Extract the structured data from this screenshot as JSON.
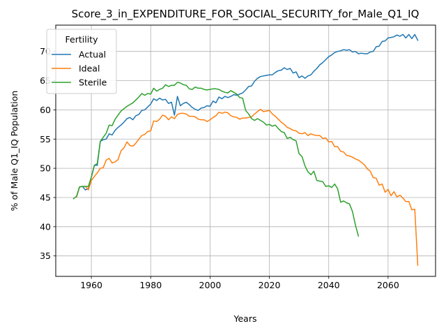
{
  "chart_data": {
    "type": "line",
    "title": "Score_3_in_EXPENDITURE_FOR_SOCIAL_SECURITY_for_Male_Q1_IQ",
    "xlabel": "Years",
    "ylabel": "% of Male Q1_IQ Population",
    "xlim": [
      1948,
      2076
    ],
    "ylim": [
      31.5,
      74.5
    ],
    "xticks": [
      1960,
      1980,
      2000,
      2020,
      2040,
      2060
    ],
    "yticks": [
      35,
      40,
      45,
      50,
      55,
      60,
      65,
      70
    ],
    "grid": true,
    "legend": {
      "title": "Fertility",
      "position": "top-left"
    },
    "series": [
      {
        "name": "Actual",
        "color": "#1f77b4",
        "x": [
          1955,
          1956,
          1957,
          1958,
          1959,
          1960,
          1961,
          1962,
          1963,
          1964,
          1965,
          1966,
          1967,
          1968,
          1969,
          1970,
          1971,
          1972,
          1973,
          1974,
          1975,
          1976,
          1977,
          1978,
          1979,
          1980,
          1981,
          1982,
          1983,
          1984,
          1985,
          1986,
          1987,
          1988,
          1989,
          1990,
          1991,
          1992,
          1993,
          1994,
          1995,
          1996,
          1997,
          1998,
          1999,
          2000,
          2001,
          2002,
          2003,
          2004,
          2005,
          2006,
          2007,
          2008,
          2009,
          2010,
          2011,
          2012,
          2013,
          2014,
          2015,
          2016,
          2017,
          2018,
          2019,
          2020,
          2021,
          2022,
          2023,
          2024,
          2025,
          2026,
          2027,
          2028,
          2029,
          2030,
          2031,
          2032,
          2033,
          2034,
          2035,
          2036,
          2037,
          2038,
          2039,
          2040,
          2041,
          2042,
          2043,
          2044,
          2045,
          2046,
          2047,
          2048,
          2049,
          2050,
          2051,
          2052,
          2053,
          2054,
          2055,
          2056,
          2057,
          2058,
          2059,
          2060,
          2061,
          2062,
          2063,
          2064,
          2065,
          2066,
          2067,
          2068,
          2069,
          2070
        ],
        "y": [
          45.1,
          46.8,
          46.9,
          46.3,
          46.5,
          48.5,
          50.5,
          50.5,
          54.6,
          54.9,
          55.0,
          55.9,
          55.7,
          56.5,
          57.0,
          57.4,
          57.9,
          58.5,
          58.7,
          58.3,
          59.0,
          59.2,
          59.9,
          60.0,
          60.5,
          61.0,
          61.9,
          61.6,
          62.0,
          61.7,
          61.8,
          61.1,
          61.3,
          59.1,
          62.3,
          60.7,
          61.1,
          61.3,
          60.9,
          60.4,
          60.1,
          59.9,
          60.3,
          60.4,
          60.7,
          60.6,
          61.5,
          61.2,
          62.2,
          61.9,
          62.3,
          62.1,
          62.3,
          62.6,
          62.5,
          62.7,
          62.9,
          63.4,
          64.0,
          64.1,
          64.9,
          65.4,
          65.7,
          65.8,
          65.9,
          66.0,
          66.0,
          66.4,
          66.7,
          66.8,
          67.2,
          66.9,
          67.1,
          66.3,
          66.5,
          65.5,
          65.8,
          65.4,
          65.8,
          66.0,
          66.6,
          67.1,
          67.7,
          68.1,
          68.6,
          69.1,
          69.4,
          69.8,
          70.0,
          70.1,
          70.3,
          70.2,
          70.3,
          69.9,
          70.0,
          69.6,
          69.7,
          69.6,
          69.6,
          69.9,
          70.0,
          70.8,
          70.9,
          71.7,
          71.8,
          72.3,
          72.4,
          72.5,
          72.8,
          72.6,
          72.9,
          72.3,
          72.9,
          72.2,
          72.9,
          71.9
        ]
      },
      {
        "name": "Ideal",
        "color": "#ff7f0e",
        "x": [
          1955,
          1956,
          1957,
          1958,
          1959,
          1960,
          1961,
          1962,
          1963,
          1964,
          1965,
          1966,
          1967,
          1968,
          1969,
          1970,
          1971,
          1972,
          1973,
          1974,
          1975,
          1976,
          1977,
          1978,
          1979,
          1980,
          1981,
          1982,
          1983,
          1984,
          1985,
          1986,
          1987,
          1988,
          1989,
          1990,
          1991,
          1992,
          1993,
          1994,
          1995,
          1996,
          1997,
          1998,
          1999,
          2000,
          2001,
          2002,
          2003,
          2004,
          2005,
          2006,
          2007,
          2008,
          2009,
          2010,
          2011,
          2012,
          2013,
          2014,
          2015,
          2016,
          2017,
          2018,
          2019,
          2020,
          2021,
          2022,
          2023,
          2024,
          2025,
          2026,
          2027,
          2028,
          2029,
          2030,
          2031,
          2032,
          2033,
          2034,
          2035,
          2036,
          2037,
          2038,
          2039,
          2040,
          2041,
          2042,
          2043,
          2044,
          2045,
          2046,
          2047,
          2048,
          2049,
          2050,
          2051,
          2052,
          2053,
          2054,
          2055,
          2056,
          2057,
          2058,
          2059,
          2060,
          2061,
          2062,
          2063,
          2064,
          2065,
          2066,
          2067,
          2068,
          2069,
          2070
        ],
        "y": [
          45.1,
          46.8,
          46.9,
          46.9,
          46.3,
          47.9,
          48.6,
          49.2,
          50.0,
          50.1,
          51.4,
          51.7,
          50.9,
          51.1,
          51.5,
          53.0,
          53.5,
          54.5,
          53.9,
          53.8,
          54.3,
          55.0,
          55.6,
          55.8,
          56.3,
          56.4,
          58.1,
          58.0,
          58.4,
          59.1,
          58.9,
          58.3,
          58.8,
          58.5,
          59.2,
          59.4,
          59.4,
          59.3,
          58.9,
          58.9,
          58.8,
          58.4,
          58.3,
          58.3,
          58.0,
          58.3,
          58.7,
          59.0,
          59.6,
          59.4,
          59.6,
          59.5,
          59.0,
          58.8,
          58.7,
          58.4,
          58.6,
          58.6,
          58.7,
          58.8,
          59.3,
          59.7,
          60.1,
          59.7,
          59.8,
          59.9,
          59.3,
          58.9,
          58.4,
          57.9,
          57.5,
          57.0,
          56.8,
          56.5,
          56.4,
          56.0,
          55.9,
          56.1,
          55.6,
          55.9,
          55.7,
          55.6,
          55.6,
          55.1,
          55.2,
          54.5,
          54.6,
          53.7,
          53.7,
          52.9,
          52.8,
          52.2,
          52.1,
          51.9,
          51.6,
          51.4,
          51.0,
          50.6,
          49.9,
          49.5,
          48.4,
          48.3,
          47.1,
          47.3,
          45.9,
          46.4,
          45.3,
          46.0,
          45.1,
          45.4,
          44.9,
          44.3,
          44.3,
          42.9,
          43.0,
          33.4
        ]
      },
      {
        "name": "Sterile",
        "color": "#2ca02c",
        "x": [
          1954,
          1955,
          1956,
          1957,
          1958,
          1959,
          1960,
          1961,
          1962,
          1963,
          1964,
          1965,
          1966,
          1967,
          1968,
          1969,
          1970,
          1971,
          1972,
          1973,
          1974,
          1975,
          1976,
          1977,
          1978,
          1979,
          1980,
          1981,
          1982,
          1983,
          1984,
          1985,
          1986,
          1987,
          1988,
          1989,
          1990,
          1991,
          1992,
          1993,
          1994,
          1995,
          1996,
          1997,
          1998,
          1999,
          2000,
          2001,
          2002,
          2003,
          2004,
          2005,
          2006,
          2007,
          2008,
          2009,
          2010,
          2011,
          2012,
          2013,
          2014,
          2015,
          2016,
          2017,
          2018,
          2019,
          2020,
          2021,
          2022,
          2023,
          2024,
          2025,
          2026,
          2027,
          2028,
          2029,
          2030,
          2031,
          2032,
          2033,
          2034,
          2035,
          2036,
          2037,
          2038,
          2039,
          2040,
          2041,
          2042,
          2043,
          2044,
          2045,
          2046,
          2047,
          2048,
          2049,
          2050
        ],
        "y": [
          44.8,
          45.2,
          46.8,
          46.9,
          46.9,
          46.9,
          48.5,
          50.5,
          50.8,
          54.6,
          55.3,
          56.0,
          57.4,
          57.3,
          58.4,
          59.1,
          59.8,
          60.2,
          60.6,
          60.9,
          61.2,
          61.7,
          62.2,
          62.8,
          62.5,
          62.8,
          62.7,
          63.7,
          63.2,
          63.5,
          63.7,
          64.3,
          64.0,
          64.2,
          64.2,
          64.7,
          64.6,
          64.3,
          64.2,
          63.6,
          63.5,
          63.9,
          63.7,
          63.7,
          63.5,
          63.4,
          63.5,
          63.6,
          63.6,
          63.5,
          63.2,
          63.0,
          62.9,
          63.3,
          63.0,
          62.7,
          62.1,
          62.0,
          59.9,
          59.3,
          58.5,
          58.2,
          58.5,
          58.2,
          57.9,
          57.4,
          57.5,
          57.2,
          57.4,
          56.8,
          56.3,
          56.1,
          55.1,
          55.3,
          54.9,
          54.7,
          52.5,
          52.0,
          50.4,
          49.4,
          48.9,
          49.5,
          47.9,
          47.8,
          47.7,
          46.9,
          47.0,
          46.7,
          47.3,
          46.5,
          44.2,
          44.4,
          44.1,
          43.9,
          42.6,
          40.3,
          38.4
        ]
      }
    ]
  }
}
